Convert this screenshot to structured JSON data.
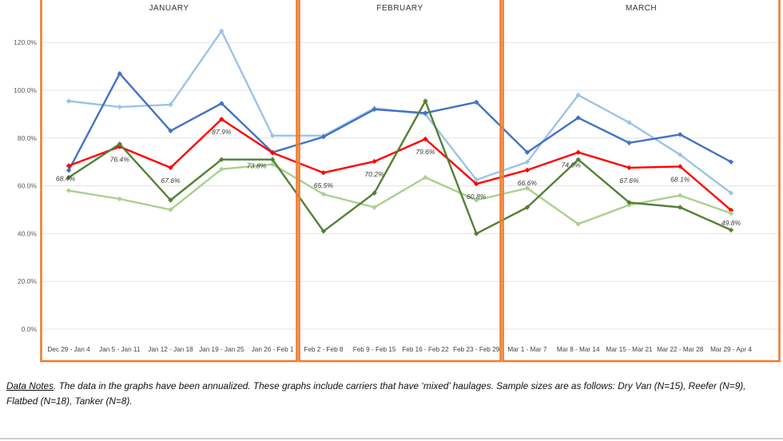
{
  "chart_data": {
    "type": "line",
    "title": "",
    "xlabel": "",
    "ylabel": "",
    "ylim": [
      0,
      130
    ],
    "grid": "horizontal",
    "legend": "none",
    "panel_border_color": "#ED7D31",
    "y_ticks": [
      {
        "value": 0,
        "label": "0.0%"
      },
      {
        "value": 20,
        "label": "20.0%"
      },
      {
        "value": 40,
        "label": "40.0%"
      },
      {
        "value": 60,
        "label": "60.0%"
      },
      {
        "value": 80,
        "label": "80.0%"
      },
      {
        "value": 100,
        "label": "100.0%"
      },
      {
        "value": 120,
        "label": "120.0%"
      }
    ],
    "x": [
      "Dec 29 - Jan 4",
      "Jan 5 - Jan 11",
      "Jan 12 - Jan 18",
      "Jan 19 - Jan 25",
      "Jan 26 - Feb 1",
      "Feb 2 - Feb 8",
      "Feb 9 - Feb 15",
      "Feb 16 - Feb 22",
      "Feb 23 - Feb 29",
      "Mar 1 - Mar 7",
      "Mar 8 - Mar 14",
      "Mar 15 - Mar 21",
      "Mar 22 - Mar 28",
      "Mar 29 - Apr 4"
    ],
    "panels": [
      {
        "label": "JANUARY",
        "points": 5
      },
      {
        "label": "FEBRUARY",
        "points": 4
      },
      {
        "label": "MARCH",
        "points": 5
      }
    ],
    "series": [
      {
        "name": "light-blue",
        "color": "#9DC3E6",
        "values": [
          95.5,
          93.0,
          94.0,
          124.8,
          81.0,
          81.0,
          92.5,
          90.0,
          62.5,
          70.0,
          98.0,
          86.5,
          73.0,
          57.0
        ]
      },
      {
        "name": "dark-blue",
        "color": "#4472C4",
        "values": [
          66.5,
          107.0,
          83.0,
          94.5,
          74.0,
          80.5,
          92.0,
          90.5,
          95.0,
          74.0,
          88.5,
          78.0,
          81.5,
          70.0
        ]
      },
      {
        "name": "red",
        "color": "#FF0000",
        "values": [
          68.4,
          76.4,
          67.6,
          87.9,
          73.8,
          65.5,
          70.2,
          79.6,
          60.8,
          66.6,
          74.0,
          67.6,
          68.1,
          49.8
        ],
        "labels": [
          "68.4%",
          "76.4%",
          "67.6%",
          "87.9%",
          "73.8%",
          "65.5%",
          "70.2%",
          "79.6%",
          "60.8%",
          "66.6%",
          "74.0%",
          "67.6%",
          "68.1%",
          "49.8%"
        ]
      },
      {
        "name": "light-green",
        "color": "#A9D18E",
        "values": [
          58.0,
          54.5,
          50.0,
          67.0,
          69.0,
          56.5,
          51.0,
          63.5,
          54.0,
          59.0,
          44.0,
          52.0,
          56.0,
          48.5
        ]
      },
      {
        "name": "dark-green",
        "color": "#538135",
        "values": [
          63.5,
          77.5,
          54.0,
          71.0,
          71.0,
          41.0,
          57.0,
          95.5,
          40.0,
          51.0,
          71.0,
          53.0,
          51.0,
          41.5
        ]
      }
    ]
  },
  "footer": {
    "lead": "Data Notes",
    "line1": ". The data in the graphs have been annualized. These graphs include carriers that have ‘mixed’ haulages. Sample sizes are as follows: Dry Van (N=15), Reefer (N=9),",
    "line2": "Flatbed (N=18), Tanker (N=8)."
  }
}
